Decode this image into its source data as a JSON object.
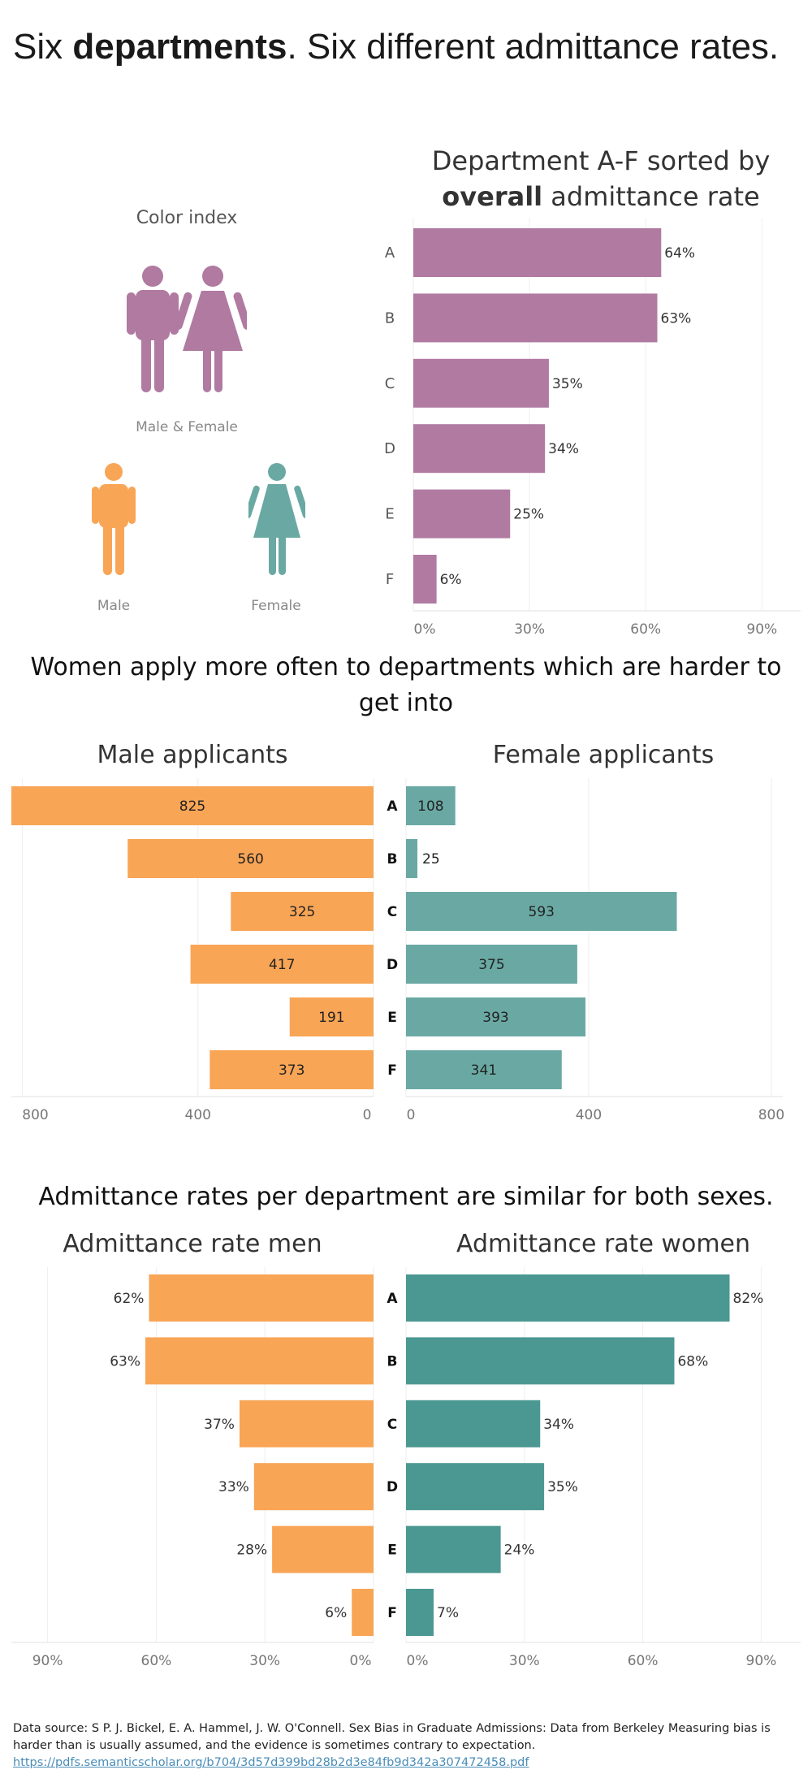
{
  "page": {
    "title_parts": [
      "Six ",
      "departments",
      ". Six different admittance rates."
    ]
  },
  "colors": {
    "overall": "#b07aa1",
    "male": "#f8a556",
    "female": "#6aa9a3",
    "female_rate": "#4a9891",
    "gridline": "#eeeeee"
  },
  "color_index": {
    "title": "Color index",
    "combined_label": "Male & Female",
    "male_label": "Male",
    "female_label": "Female",
    "icons": [
      "male-figure-icon",
      "female-figure-icon"
    ]
  },
  "sections": {
    "applicants_title": "Women apply more often to departments which are harder to get into",
    "rates_title": "Admittance rates per department are similar for both sexes."
  },
  "chart_data": [
    {
      "id": "overall",
      "type": "bar",
      "orientation": "horizontal",
      "title_parts": [
        "Department A-F sorted by",
        "overall",
        " admittance rate"
      ],
      "categories": [
        "A",
        "B",
        "C",
        "D",
        "E",
        "F"
      ],
      "values": [
        64,
        63,
        35,
        34,
        25,
        6
      ],
      "value_labels": [
        "64%",
        "63%",
        "35%",
        "34%",
        "25%",
        "6%"
      ],
      "xlim": [
        0,
        100
      ],
      "ticks": [
        0,
        30,
        60,
        90
      ],
      "tick_labels": [
        "0%",
        "30%",
        "60%",
        "90%"
      ],
      "grid": true
    },
    {
      "id": "male-applicants",
      "type": "bar",
      "orientation": "horizontal",
      "direction": "right-to-left",
      "title": "Male applicants",
      "categories": [
        "A",
        "B",
        "C",
        "D",
        "E",
        "F"
      ],
      "values": [
        825,
        560,
        325,
        417,
        191,
        373
      ],
      "xlim": [
        0,
        825
      ],
      "ticks": [
        800,
        400,
        0
      ],
      "tick_labels": [
        "800",
        "400",
        "0"
      ],
      "grid": true
    },
    {
      "id": "female-applicants",
      "type": "bar",
      "orientation": "horizontal",
      "title": "Female applicants",
      "categories": [
        "A",
        "B",
        "C",
        "D",
        "E",
        "F"
      ],
      "values": [
        108,
        25,
        593,
        375,
        393,
        341
      ],
      "xlim": [
        0,
        825
      ],
      "ticks": [
        0,
        400,
        800
      ],
      "tick_labels": [
        "0",
        "400",
        "800"
      ],
      "grid": true
    },
    {
      "id": "rate-men",
      "type": "bar",
      "orientation": "horizontal",
      "direction": "right-to-left",
      "title": "Admittance rate men",
      "categories": [
        "A",
        "B",
        "C",
        "D",
        "E",
        "F"
      ],
      "values": [
        62,
        63,
        37,
        33,
        28,
        6
      ],
      "value_labels": [
        "62%",
        "63%",
        "37%",
        "33%",
        "28%",
        "6%"
      ],
      "xlim": [
        0,
        100
      ],
      "ticks": [
        90,
        60,
        30,
        0
      ],
      "tick_labels": [
        "90%",
        "60%",
        "30%",
        "0%"
      ],
      "grid": true
    },
    {
      "id": "rate-women",
      "type": "bar",
      "orientation": "horizontal",
      "title": "Admittance rate women",
      "categories": [
        "A",
        "B",
        "C",
        "D",
        "E",
        "F"
      ],
      "values": [
        82,
        68,
        34,
        35,
        24,
        7
      ],
      "value_labels": [
        "82%",
        "68%",
        "34%",
        "35%",
        "24%",
        "7%"
      ],
      "xlim": [
        0,
        100
      ],
      "ticks": [
        0,
        30,
        60,
        90
      ],
      "tick_labels": [
        "0%",
        "30%",
        "60%",
        "90%"
      ],
      "grid": true
    }
  ],
  "source": {
    "prefix": "Data source: ",
    "text": "S P. J. Bickel, E. A. Hammel, J. W. O'Connell. Sex Bias in Graduate Admissions: Data from Berkeley Measuring bias is harder than is usually assumed, and the evidence is sometimes contrary to expectation.",
    "link": "https://pdfs.semanticscholar.org/b704/3d57d399bd28b2d3e84fb9d342a307472458.pdf"
  }
}
